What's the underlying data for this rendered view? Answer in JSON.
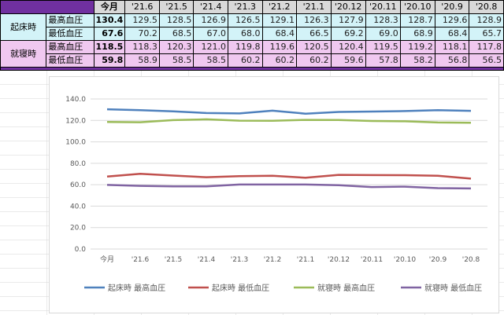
{
  "table": {
    "columns": [
      "今月",
      "'21.6",
      "'21.5",
      "'21.4",
      "'21.3",
      "'21.2",
      "'21.1",
      "'20.12",
      "'20.11",
      "'20.10",
      "'20.9",
      "'20.8"
    ],
    "groups": [
      {
        "name": "起床時",
        "rows": [
          {
            "label": "最高血圧",
            "values": [
              "130.4",
              "129.5",
              "128.5",
              "126.9",
              "126.5",
              "129.1",
              "126.3",
              "127.9",
              "128.3",
              "128.7",
              "129.6",
              "128.9"
            ]
          },
          {
            "label": "最低血圧",
            "values": [
              "67.6",
              "70.2",
              "68.5",
              "67.0",
              "68.0",
              "68.4",
              "66.5",
              "69.2",
              "69.0",
              "68.9",
              "68.4",
              "65.7"
            ]
          }
        ]
      },
      {
        "name": "就寝時",
        "rows": [
          {
            "label": "最高血圧",
            "values": [
              "118.5",
              "118.3",
              "120.3",
              "121.0",
              "119.8",
              "119.6",
              "120.5",
              "120.4",
              "119.5",
              "119.2",
              "118.1",
              "117.8"
            ]
          },
          {
            "label": "最低血圧",
            "values": [
              "59.8",
              "58.9",
              "58.5",
              "58.5",
              "60.2",
              "60.2",
              "60.2",
              "59.6",
              "57.8",
              "58.2",
              "56.8",
              "56.5"
            ]
          }
        ]
      }
    ]
  },
  "chart_data": {
    "type": "line",
    "categories": [
      "今月",
      "'21.6",
      "'21.5",
      "'21.4",
      "'21.3",
      "'21.2",
      "'21.1",
      "'20.12",
      "'20.11",
      "'20.10",
      "'20.9",
      "'20.8"
    ],
    "ylim": [
      0,
      140
    ],
    "yticks": [
      "0.0",
      "20.0",
      "40.0",
      "60.0",
      "80.0",
      "100.0",
      "120.0",
      "140.0"
    ],
    "grid": true,
    "legend": "bottom",
    "series": [
      {
        "name": "起床時 最高血圧",
        "color": "#4f81bd",
        "values": [
          130.4,
          129.5,
          128.5,
          126.9,
          126.5,
          129.1,
          126.3,
          127.9,
          128.3,
          128.7,
          129.6,
          128.9
        ]
      },
      {
        "name": "起床時 最低血圧",
        "color": "#c0504d",
        "values": [
          67.6,
          70.2,
          68.5,
          67.0,
          68.0,
          68.4,
          66.5,
          69.2,
          69.0,
          68.9,
          68.4,
          65.7
        ]
      },
      {
        "name": "就寝時 最高血圧",
        "color": "#9bbb59",
        "values": [
          118.5,
          118.3,
          120.3,
          121.0,
          119.8,
          119.6,
          120.5,
          120.4,
          119.5,
          119.2,
          118.1,
          117.8
        ]
      },
      {
        "name": "就寝時 最低血圧",
        "color": "#8064a2",
        "values": [
          59.8,
          58.9,
          58.5,
          58.5,
          60.2,
          60.2,
          60.2,
          59.6,
          57.8,
          58.2,
          56.8,
          56.5
        ]
      }
    ]
  },
  "theme": {
    "header_band": "#7030a0",
    "wake_fill": "#d3f3f8",
    "sleep_fill": "#f0c8f0"
  }
}
